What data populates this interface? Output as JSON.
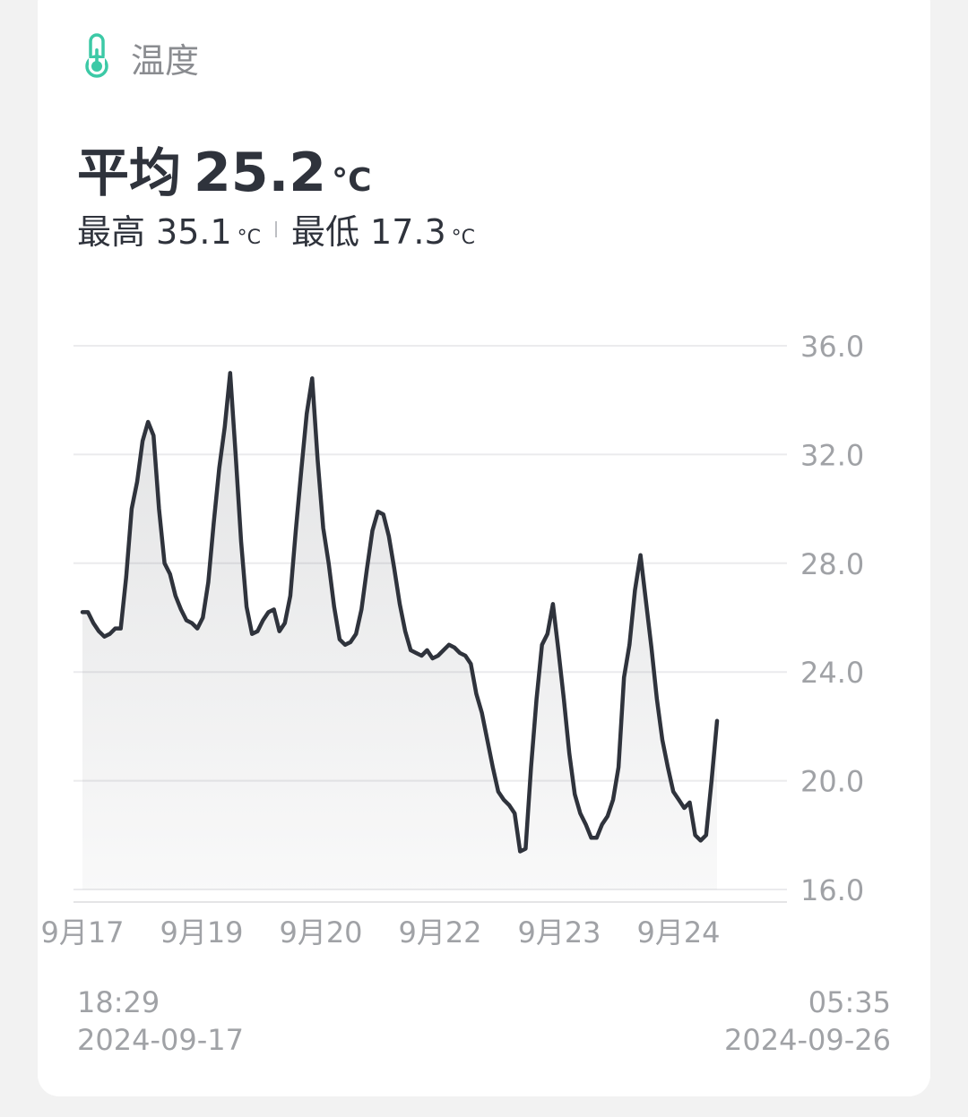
{
  "header": {
    "title": "温度",
    "icon": "thermometer-icon",
    "accent": "#3cc9a6"
  },
  "summary": {
    "avg_label": "平均",
    "avg_value": "25.2",
    "unit": "°C",
    "max_label": "最高",
    "max_value": "35.1",
    "min_label": "最低",
    "min_value": "17.3"
  },
  "range": {
    "start_time": "18:29",
    "start_date": "2024-09-17",
    "end_time": "05:35",
    "end_date": "2024-09-26"
  },
  "chart_data": {
    "type": "area",
    "title": "",
    "xlabel": "",
    "ylabel": "",
    "ylim": [
      16,
      36
    ],
    "yticks": [
      "36.0",
      "32.0",
      "28.0",
      "24.0",
      "20.0",
      "16.0"
    ],
    "xtick_labels": [
      "9月17",
      "9月19",
      "9月20",
      "9月22",
      "9月23",
      "9月24"
    ],
    "grid": true,
    "line_color": "#2f333c",
    "series": [
      {
        "values": [
          26.2,
          26.2,
          25.8,
          25.5,
          25.3,
          25.4,
          25.6,
          25.6,
          27.5,
          30.0,
          31.0,
          32.5,
          33.2,
          32.7,
          30.0,
          28.0,
          27.6,
          26.8,
          26.3,
          25.9,
          25.8,
          25.6,
          26.0,
          27.3,
          29.5,
          31.5,
          33.0,
          35.0,
          32.0,
          28.8,
          26.4,
          25.4,
          25.5,
          25.9,
          26.2,
          26.3,
          25.5,
          25.8,
          26.8,
          29.2,
          31.4,
          33.5,
          34.8,
          31.8,
          29.3,
          28.0,
          26.4,
          25.2,
          25.0,
          25.1,
          25.4,
          26.3,
          27.8,
          29.2,
          29.9,
          29.8,
          29.0,
          27.8,
          26.5,
          25.5,
          24.8,
          24.7,
          24.6,
          24.8,
          24.5,
          24.6,
          24.8,
          25.0,
          24.9,
          24.7,
          24.6,
          24.3,
          23.2,
          22.5,
          21.5,
          20.5,
          19.6,
          19.3,
          19.1,
          18.8,
          17.4,
          17.5,
          20.5,
          23.0,
          25.0,
          25.4,
          26.5,
          24.8,
          23.0,
          21.0,
          19.5,
          18.8,
          18.4,
          17.9,
          17.9,
          18.4,
          18.7,
          19.3,
          20.5,
          23.8,
          25.0,
          27.0,
          28.3,
          26.6,
          24.9,
          23.0,
          21.5,
          20.5,
          19.6,
          19.3,
          19.0,
          19.2,
          18.0,
          17.8,
          18.0,
          20.0,
          22.2
        ]
      }
    ]
  }
}
